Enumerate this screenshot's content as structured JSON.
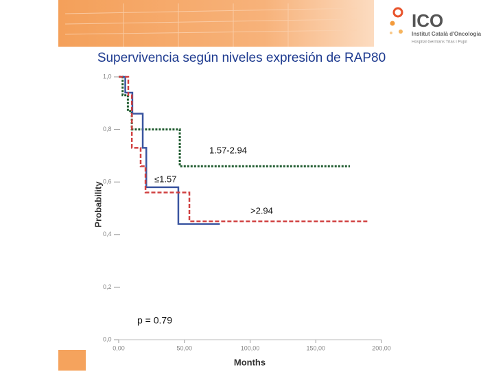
{
  "header": {
    "logo": "ICO",
    "institute": "Institut Català d'Oncologia",
    "hospital": "Hospital Germans Trias i Pujol"
  },
  "chart_data": {
    "type": "step",
    "title": "Supervivencia según niveles expresión de RAP80",
    "x_label": "Months",
    "y_label": "Probability",
    "xlim": [
      0,
      200
    ],
    "xticks": [
      {
        "value": 0,
        "label": "0,00"
      },
      {
        "value": 50,
        "label": "50,00"
      },
      {
        "value": 100,
        "label": "100,00"
      },
      {
        "value": 150,
        "label": "150,00"
      },
      {
        "value": 200,
        "label": "200,00"
      }
    ],
    "ylim": [
      0,
      1
    ],
    "yticks": [
      {
        "value": 0,
        "label": "0,0"
      },
      {
        "value": 0.2,
        "label": "0,2"
      },
      {
        "value": 0.4,
        "label": "0,4"
      },
      {
        "value": 0.6,
        "label": "0,6"
      },
      {
        "value": 0.8,
        "label": "0,8"
      },
      {
        "value": 1,
        "label": "1,0"
      }
    ],
    "series": [
      {
        "name": "1.57-2.94",
        "color": "#1e5a2e",
        "x": [
          0,
          3,
          7,
          10,
          46.5,
          176
        ],
        "values": [
          1,
          0.93,
          0.87,
          0.8,
          0.66,
          0.66
        ]
      },
      {
        "name": "≤1.57",
        "color": "#3a55a0",
        "x": [
          0,
          5,
          10.4,
          18.3,
          21,
          45.4,
          77
        ],
        "values": [
          1,
          0.94,
          0.86,
          0.73,
          0.58,
          0.44,
          0.44
        ]
      },
      {
        "name": ">2.94",
        "color": "#d04040",
        "x": [
          0,
          7.3,
          10,
          16.7,
          20.4,
          53.8,
          190
        ],
        "values": [
          1,
          0.93,
          0.73,
          0.66,
          0.56,
          0.45,
          0.45
        ]
      }
    ],
    "annotation": "p = 0.79"
  }
}
